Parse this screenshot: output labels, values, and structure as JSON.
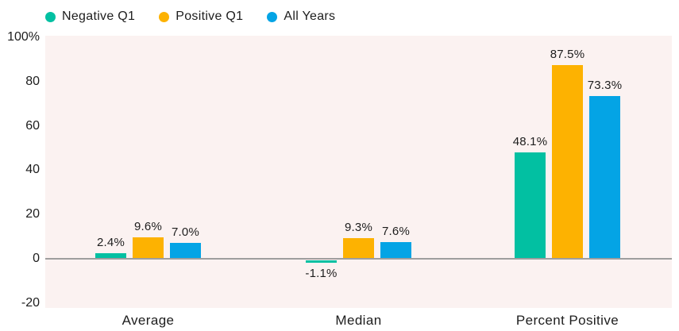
{
  "chart_data": {
    "type": "bar",
    "title": "",
    "xlabel": "",
    "ylabel": "",
    "categories": [
      "Average",
      "Median",
      "Percent Positive"
    ],
    "series": [
      {
        "name": "Negative Q1",
        "color": "#02c0a2",
        "values": [
          2.4,
          -1.1,
          48.1
        ],
        "labels": [
          "2.4%",
          "-1.1%",
          "48.1%"
        ]
      },
      {
        "name": "Positive Q1",
        "color": "#fdb201",
        "values": [
          9.6,
          9.3,
          87.5
        ],
        "labels": [
          "9.6%",
          "9.3%",
          "87.5%"
        ]
      },
      {
        "name": "All Years",
        "color": "#04a4e5",
        "values": [
          7.0,
          7.6,
          73.3
        ],
        "labels": [
          "7.0%",
          "7.6%",
          "73.3%"
        ]
      }
    ],
    "ylim": [
      -20,
      100
    ],
    "y_ticks": [
      {
        "value": 100,
        "label": "100%"
      },
      {
        "value": 80,
        "label": "80"
      },
      {
        "value": 60,
        "label": "60"
      },
      {
        "value": 40,
        "label": "40"
      },
      {
        "value": 20,
        "label": "20"
      },
      {
        "value": 0,
        "label": "0"
      },
      {
        "value": -20,
        "label": "-20"
      }
    ],
    "grid": false,
    "legend_position": "top-left"
  },
  "style": {
    "page_background": "#ffffff",
    "plot_background": "#fbf2f1",
    "axis_line_color": "#9e9e9e",
    "text_color": "#1d1d1d",
    "series_colors": [
      "#02c0a2",
      "#fdb201",
      "#04a4e5"
    ]
  }
}
